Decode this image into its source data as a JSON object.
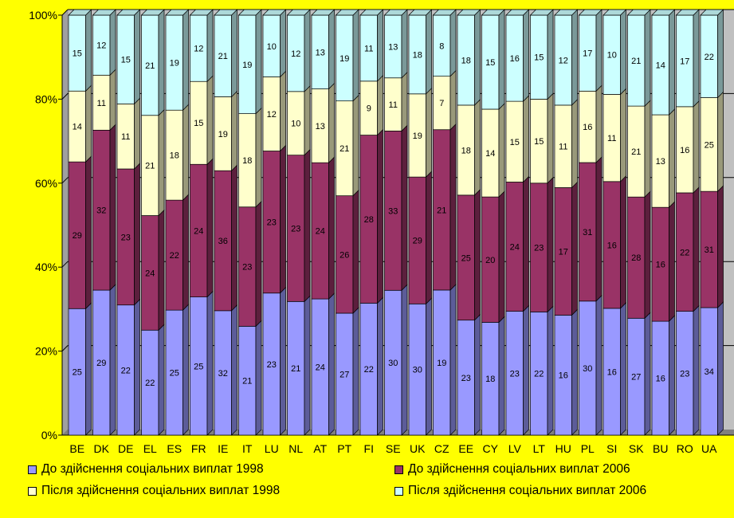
{
  "chart_data": {
    "type": "bar",
    "stacked": "percent",
    "categories": [
      "BE",
      "DK",
      "DE",
      "EL",
      "ES",
      "FR",
      "IE",
      "IT",
      "LU",
      "NL",
      "AT",
      "PT",
      "FI",
      "SE",
      "UK",
      "CZ",
      "EE",
      "CY",
      "LV",
      "LT",
      "HU",
      "PL",
      "SI",
      "SK",
      "BU",
      "RO",
      "UA"
    ],
    "series": [
      {
        "name": "До здійснення соціальних виплат 1998",
        "color": "#9999FF",
        "values": [
          25,
          29,
          22,
          22,
          25,
          25,
          32,
          21,
          23,
          21,
          24,
          27,
          22,
          30,
          30,
          19,
          23,
          18,
          23,
          22,
          16,
          30,
          16,
          27,
          16,
          23,
          34
        ]
      },
      {
        "name": "До здійснення соціальних виплат 2006",
        "color": "#993366",
        "values": [
          29,
          32,
          23,
          24,
          22,
          24,
          36,
          23,
          23,
          23,
          24,
          26,
          28,
          33,
          29,
          21,
          25,
          20,
          24,
          23,
          17,
          31,
          16,
          28,
          16,
          22,
          31
        ]
      },
      {
        "name": "Після здійснення соціальних виплат 1998",
        "color": "#FFFFCC",
        "values": [
          14,
          11,
          11,
          21,
          18,
          15,
          19,
          18,
          12,
          10,
          13,
          21,
          9,
          11,
          19,
          7,
          18,
          14,
          15,
          15,
          11,
          16,
          11,
          21,
          13,
          16,
          25
        ]
      },
      {
        "name": "Після здійснення соціальних виплат 2006",
        "color": "#CCFFFF",
        "values": [
          15,
          12,
          15,
          21,
          19,
          12,
          21,
          19,
          10,
          12,
          13,
          19,
          11,
          13,
          18,
          8,
          18,
          15,
          16,
          15,
          12,
          17,
          10,
          21,
          14,
          17,
          22
        ]
      }
    ],
    "y_ticks": [
      "0%",
      "20%",
      "40%",
      "60%",
      "80%",
      "100%"
    ],
    "ylim": [
      0,
      100
    ],
    "grid": true,
    "legend_position": "bottom"
  }
}
